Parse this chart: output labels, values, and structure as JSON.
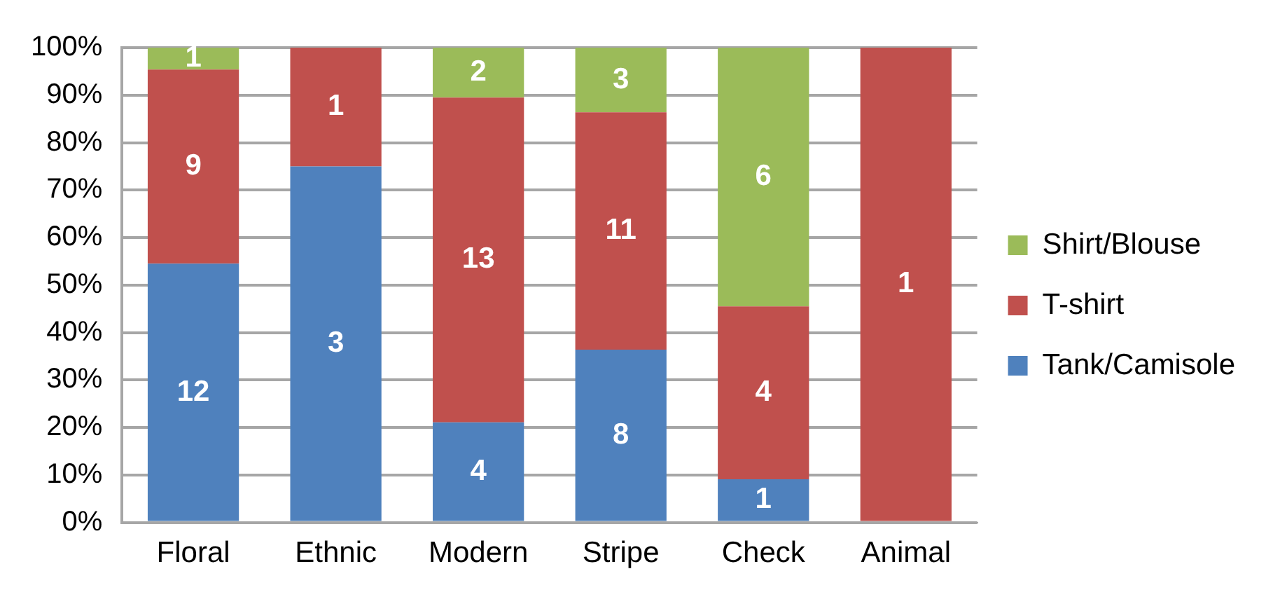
{
  "chart_data": {
    "type": "bar",
    "stacked": true,
    "categories": [
      "Floral",
      "Ethnic",
      "Modern",
      "Stripe",
      "Check",
      "Animal"
    ],
    "series": [
      {
        "name": "Tank/Camisole",
        "color": "#4f81bd",
        "values": [
          54.5,
          75,
          21.1,
          36.4,
          9.1,
          null
        ]
      },
      {
        "name": "T-shirt",
        "color": "#c0504d",
        "values": [
          40.9,
          25,
          68.4,
          50,
          36.4,
          100
        ]
      },
      {
        "name": "Shirt/Blouse",
        "color": "#9bbb59",
        "values": [
          4.6,
          null,
          10.5,
          13.6,
          54.5,
          null
        ]
      }
    ],
    "annotations": [
      "12",
      "3",
      "4",
      "8",
      "1",
      "9",
      "1",
      "13",
      "11",
      "4",
      "1",
      "1",
      "2",
      "3",
      "6"
    ],
    "ylim": [
      0,
      100
    ],
    "yticks": [
      {
        "value": 0,
        "label": "0%"
      },
      {
        "value": 10,
        "label": "10%"
      },
      {
        "value": 20,
        "label": "20%"
      },
      {
        "value": 30,
        "label": "30%"
      },
      {
        "value": 40,
        "label": "40%"
      },
      {
        "value": 50,
        "label": "50%"
      },
      {
        "value": 60,
        "label": "60%"
      },
      {
        "value": 70,
        "label": "70%"
      },
      {
        "value": 80,
        "label": "80%"
      },
      {
        "value": 90,
        "label": "90%"
      },
      {
        "value": 100,
        "label": "100%"
      }
    ],
    "grid": "y",
    "legend": "right"
  }
}
